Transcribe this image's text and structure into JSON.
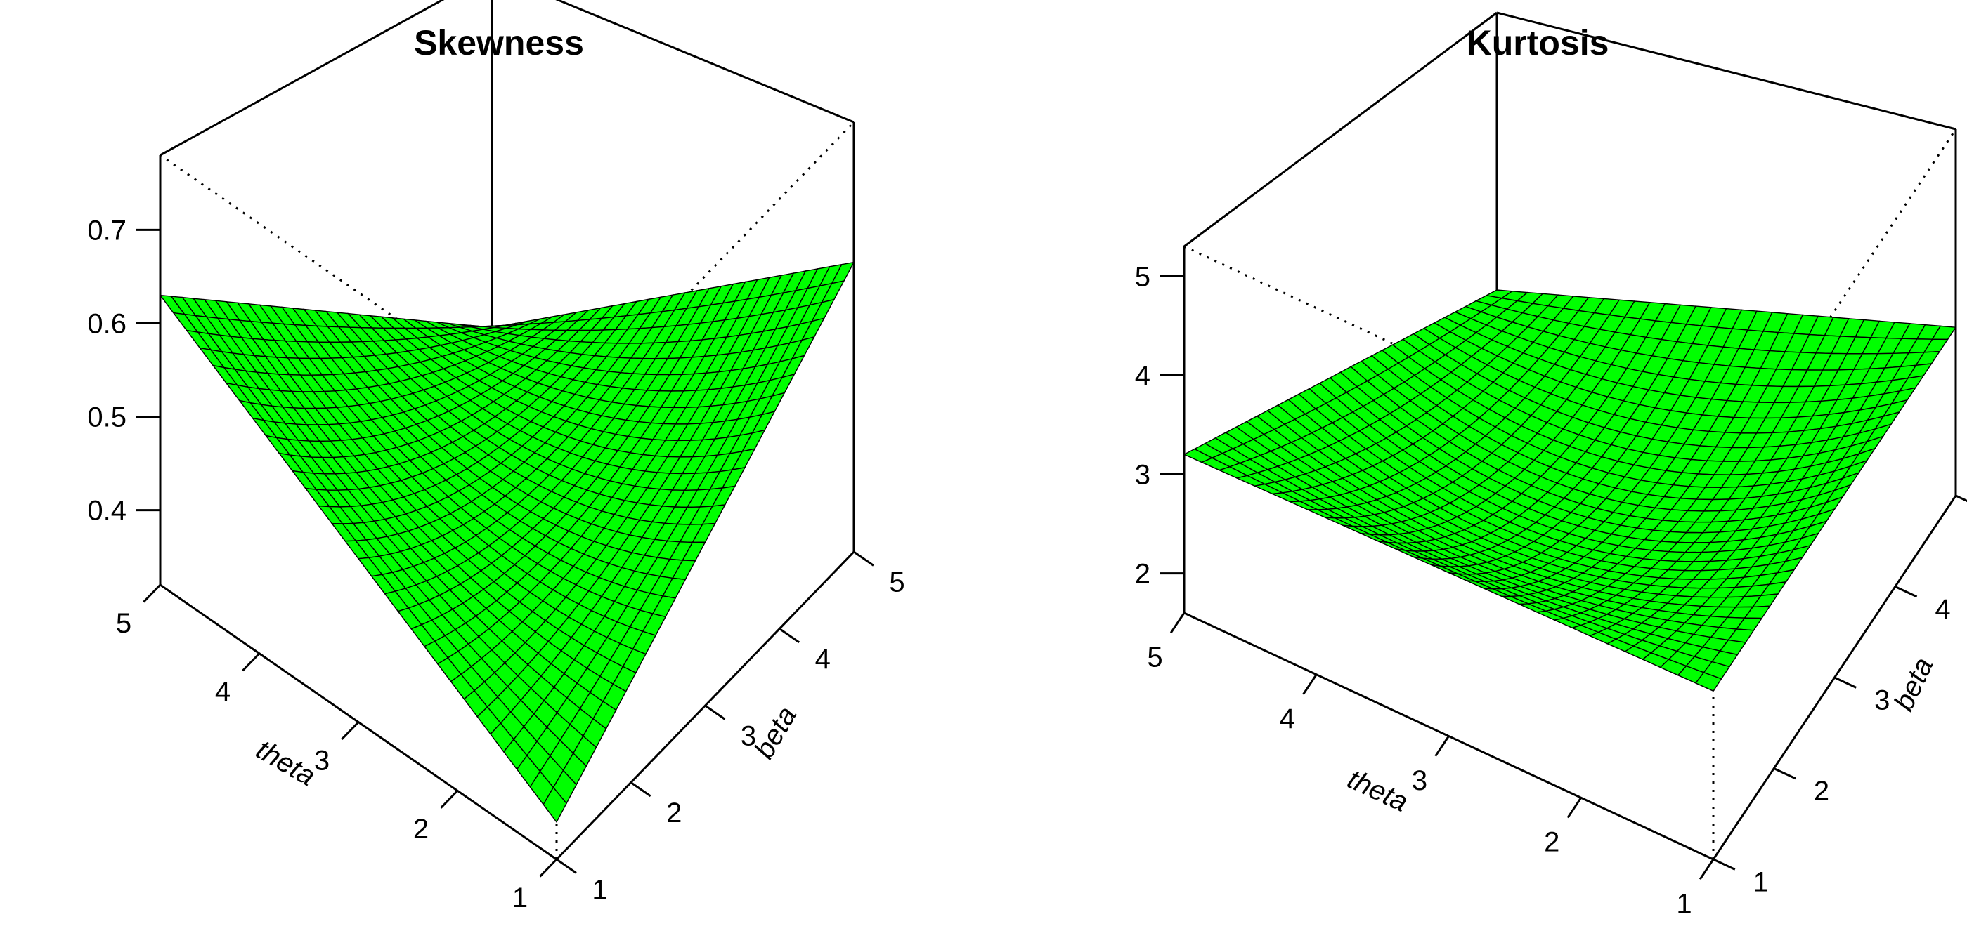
{
  "chart_data": [
    {
      "type": "surface",
      "title": "Skewness",
      "xlabel": "theta",
      "ylabel": "beta",
      "zlabel": "",
      "xlim": [
        1,
        5
      ],
      "ylim": [
        1,
        5
      ],
      "zlim": [
        0.32,
        0.78
      ],
      "x_ticks": [
        "1",
        "2",
        "3",
        "4",
        "5"
      ],
      "y_ticks": [
        "1",
        "2",
        "3",
        "4",
        "5"
      ],
      "z_ticks": [
        "0.4",
        "0.5",
        "0.6",
        "0.7"
      ],
      "surface": {
        "corner_values": {
          "x1y1": 0.36,
          "x5y1": 0.63,
          "x1y5": 0.63,
          "x5y5": 0.4
        },
        "center_value": 0.44
      },
      "facet_color": "#00ff00",
      "grid": false
    },
    {
      "type": "surface",
      "title": "Kurtosis",
      "xlabel": "theta",
      "ylabel": "beta",
      "zlabel": "",
      "xlim": [
        1,
        5
      ],
      "ylim": [
        1,
        5
      ],
      "zlim": [
        1.6,
        5.3
      ],
      "x_ticks": [
        "1",
        "2",
        "3",
        "4",
        "5"
      ],
      "y_ticks": [
        "1",
        "2",
        "3",
        "4",
        "5"
      ],
      "z_ticks": [
        "2",
        "3",
        "4",
        "5"
      ],
      "surface": {
        "corner_values": {
          "x1y1": 3.3,
          "x5y1": 3.2,
          "x1y5": 3.3,
          "x5y5": 2.5
        },
        "center_value": 2.3
      },
      "facet_color": "#00ff00",
      "grid": false
    }
  ]
}
